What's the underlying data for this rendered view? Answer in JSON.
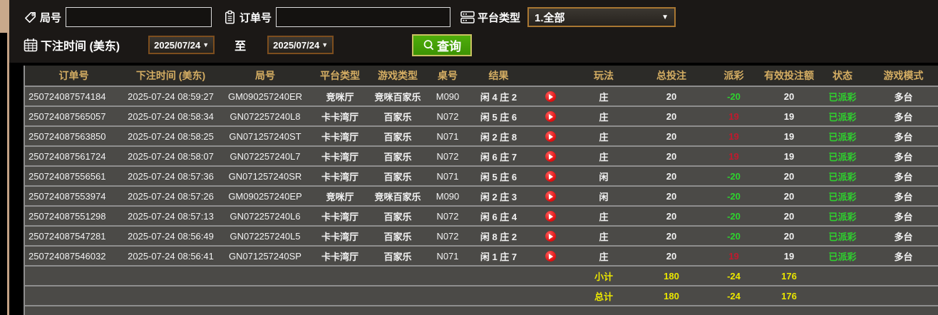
{
  "filters": {
    "round_label": "局号",
    "round_value": "",
    "order_label": "订单号",
    "order_value": "",
    "platform_label": "平台类型",
    "platform_value": "1.全部",
    "time_label": "下注时间 (美东)",
    "date_from": "2025/07/24",
    "to_label": "至",
    "date_to": "2025/07/24",
    "search_label": "查询",
    "dropdown_arrow": "▼"
  },
  "table": {
    "headers": [
      "订单号",
      "下注时间 (美东)",
      "局号",
      "平台类型",
      "游戏类型",
      "桌号",
      "结果",
      "",
      "玩法",
      "总投注",
      "派彩",
      "有效投注额",
      "状态",
      "游戏模式"
    ],
    "rows": [
      {
        "order_id": "250724087574184",
        "bet_time": "2025-07-24 08:59:27",
        "round_id": "GM090257240ER",
        "platform": "竞咪厅",
        "game_type": "竞咪百家乐",
        "table_no": "M090",
        "result": "闲 4 庄 2",
        "play_side": "庄",
        "total_bet": "20",
        "payout": "-20",
        "payout_color": "green",
        "valid_bet": "20",
        "status": "已派彩",
        "mode": "多台"
      },
      {
        "order_id": "250724087565057",
        "bet_time": "2025-07-24 08:58:34",
        "round_id": "GN072257240L8",
        "platform": "卡卡湾厅",
        "game_type": "百家乐",
        "table_no": "N072",
        "result": "闲 5 庄 6",
        "play_side": "庄",
        "total_bet": "20",
        "payout": "19",
        "payout_color": "red",
        "valid_bet": "19",
        "status": "已派彩",
        "mode": "多台"
      },
      {
        "order_id": "250724087563850",
        "bet_time": "2025-07-24 08:58:25",
        "round_id": "GN071257240ST",
        "platform": "卡卡湾厅",
        "game_type": "百家乐",
        "table_no": "N071",
        "result": "闲 2 庄 8",
        "play_side": "庄",
        "total_bet": "20",
        "payout": "19",
        "payout_color": "red",
        "valid_bet": "19",
        "status": "已派彩",
        "mode": "多台"
      },
      {
        "order_id": "250724087561724",
        "bet_time": "2025-07-24 08:58:07",
        "round_id": "GN072257240L7",
        "platform": "卡卡湾厅",
        "game_type": "百家乐",
        "table_no": "N072",
        "result": "闲 6 庄 7",
        "play_side": "庄",
        "total_bet": "20",
        "payout": "19",
        "payout_color": "red",
        "valid_bet": "19",
        "status": "已派彩",
        "mode": "多台"
      },
      {
        "order_id": "250724087556561",
        "bet_time": "2025-07-24 08:57:36",
        "round_id": "GN071257240SR",
        "platform": "卡卡湾厅",
        "game_type": "百家乐",
        "table_no": "N071",
        "result": "闲 5 庄 6",
        "play_side": "闲",
        "total_bet": "20",
        "payout": "-20",
        "payout_color": "green",
        "valid_bet": "20",
        "status": "已派彩",
        "mode": "多台"
      },
      {
        "order_id": "250724087553974",
        "bet_time": "2025-07-24 08:57:26",
        "round_id": "GM090257240EP",
        "platform": "竞咪厅",
        "game_type": "竞咪百家乐",
        "table_no": "M090",
        "result": "闲 2 庄 3",
        "play_side": "闲",
        "total_bet": "20",
        "payout": "-20",
        "payout_color": "green",
        "valid_bet": "20",
        "status": "已派彩",
        "mode": "多台"
      },
      {
        "order_id": "250724087551298",
        "bet_time": "2025-07-24 08:57:13",
        "round_id": "GN072257240L6",
        "platform": "卡卡湾厅",
        "game_type": "百家乐",
        "table_no": "N072",
        "result": "闲 6 庄 4",
        "play_side": "庄",
        "total_bet": "20",
        "payout": "-20",
        "payout_color": "green",
        "valid_bet": "20",
        "status": "已派彩",
        "mode": "多台"
      },
      {
        "order_id": "250724087547281",
        "bet_time": "2025-07-24 08:56:49",
        "round_id": "GN072257240L5",
        "platform": "卡卡湾厅",
        "game_type": "百家乐",
        "table_no": "N072",
        "result": "闲 8 庄 2",
        "play_side": "庄",
        "total_bet": "20",
        "payout": "-20",
        "payout_color": "green",
        "valid_bet": "20",
        "status": "已派彩",
        "mode": "多台"
      },
      {
        "order_id": "250724087546032",
        "bet_time": "2025-07-24 08:56:41",
        "round_id": "GN071257240SP",
        "platform": "卡卡湾厅",
        "game_type": "百家乐",
        "table_no": "N071",
        "result": "闲 1 庄 7",
        "play_side": "庄",
        "total_bet": "20",
        "payout": "19",
        "payout_color": "red",
        "valid_bet": "19",
        "status": "已派彩",
        "mode": "多台"
      }
    ],
    "subtotal": {
      "label": "小计",
      "total_bet": "180",
      "payout": "-24",
      "valid_bet": "176"
    },
    "total": {
      "label": "总计",
      "total_bet": "180",
      "payout": "-24",
      "valid_bet": "176"
    }
  },
  "colors": {
    "accent_gold": "#d4ad63",
    "status_green": "#2ed32e",
    "payout_red": "#c11a2e",
    "summary_yellow": "#eae600",
    "button_green": "#439d07",
    "border_brown": "#7d4e1e",
    "ribbon_tan": "#c9a98b"
  }
}
